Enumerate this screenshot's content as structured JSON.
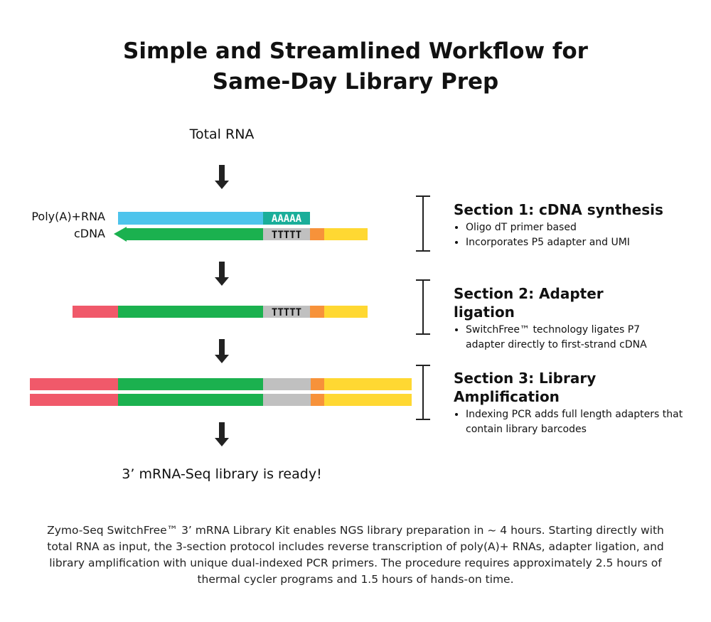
{
  "title": {
    "line1": "Simple and Streamlined Workflow for",
    "line2": "Same-Day Library Prep"
  },
  "start_label": "Total RNA",
  "strand_labels": {
    "rna": "Poly(A)+RNA",
    "cdna": "cDNA"
  },
  "sequences": {
    "polya": "AAAAA",
    "polyt": "TTTTT"
  },
  "colors": {
    "rna": "#4ec4ec",
    "polya": "#1aae9a",
    "cdna": "#1bb14f",
    "polyt": "#c0c0c0",
    "orange": "#f7923a",
    "yellow": "#ffd832",
    "red": "#f0596a"
  },
  "sections": [
    {
      "heading": "Section 1: cDNA synthesis",
      "bullets": [
        "Oligo dT primer based",
        "Incorporates P5 adapter and UMI"
      ]
    },
    {
      "heading": "Section 2: Adapter ligation",
      "bullets": [
        "SwitchFree™ technology ligates P7 adapter directly to first-strand cDNA"
      ]
    },
    {
      "heading": "Section 3: Library Amplification",
      "bullets": [
        "Indexing PCR adds full length adapters that contain library barcodes"
      ]
    }
  ],
  "end_label": "3’ mRNA-Seq library is ready!",
  "caption": "Zymo-Seq SwitchFree™ 3’ mRNA Library Kit enables NGS library preparation in ~ 4 hours. Starting directly with total RNA as input, the 3-section protocol includes reverse transcription of poly(A)+ RNAs, adapter ligation, and library amplification with unique dual-indexed PCR primers. The procedure requires approximately 2.5 hours of thermal cycler programs and 1.5 hours of hands-on time."
}
